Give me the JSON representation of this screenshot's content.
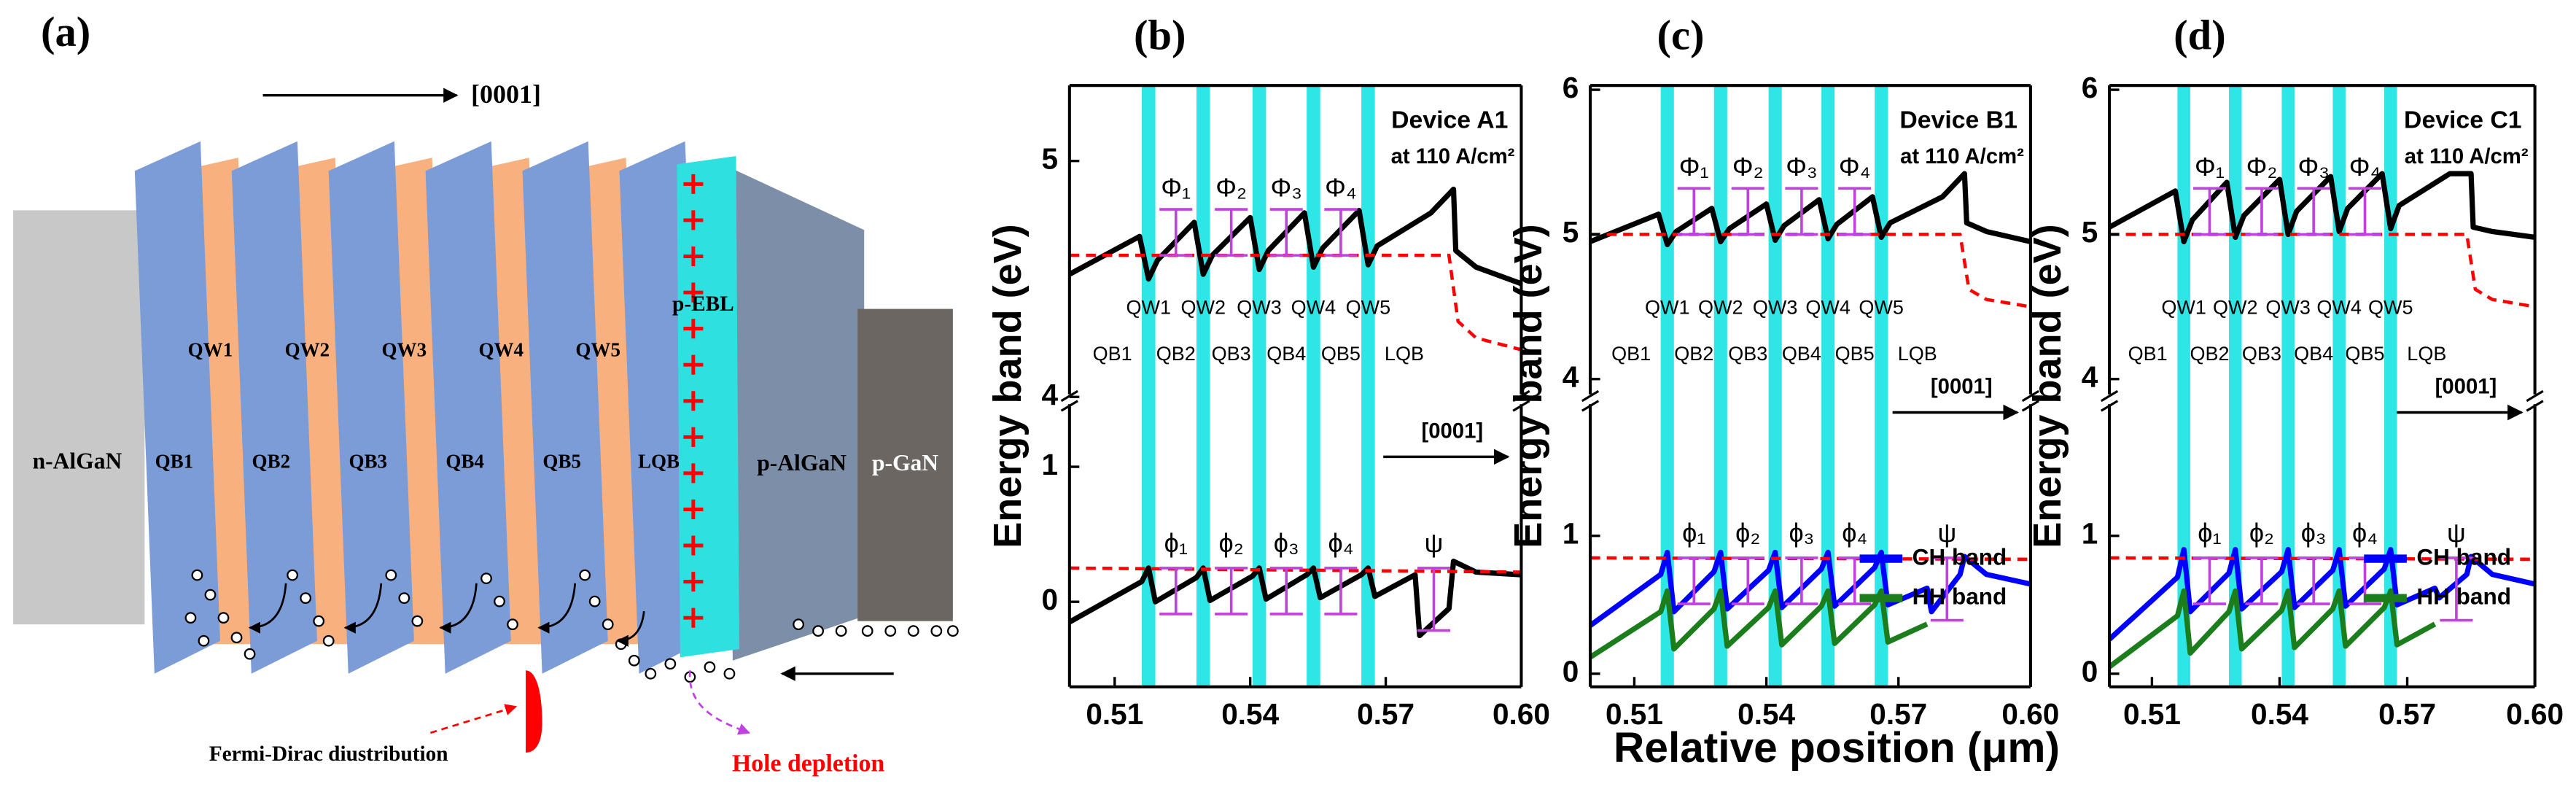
{
  "diagram": {
    "label": "(a)",
    "direction": "[0001]",
    "n_layer": "n-AlGaN",
    "qb_labels": [
      "QB1",
      "QB2",
      "QB3",
      "QB4",
      "QB5",
      "LQB"
    ],
    "qw_labels": [
      "QW1",
      "QW2",
      "QW3",
      "QW4",
      "QW5"
    ],
    "ebl": "p-EBL",
    "p_algan": "p-AlGaN",
    "p_gan": "p-GaN",
    "fermi_note": "Fermi-Dirac diustribution",
    "hole_note": "Hole depletion"
  },
  "chart_data": [
    {
      "type": "line",
      "panel_label": "(b)",
      "title": "Device A1",
      "subtitle": "at 110 A/cm²",
      "ylabel": "Energy band (eV)",
      "xlim": [
        0.5,
        0.6
      ],
      "xticks": [
        0.51,
        0.54,
        0.57,
        {
          "value": 0.6,
          "label": "0.60"
        }
      ],
      "qw_centers": [
        0.5175,
        0.5296,
        0.542,
        0.554,
        0.5661
      ],
      "qw_width": 0.003,
      "qw_color": "#2ee6e6",
      "qw_labels": [
        "QW1",
        "QW2",
        "QW3",
        "QW4",
        "QW5"
      ],
      "qb_labels": [
        "QB1",
        "QB2",
        "QB3",
        "QB4",
        "QB5",
        "LQB"
      ],
      "barrier_labels_upper": [
        "Φ₁",
        "Φ₂",
        "Φ₃",
        "Φ₄"
      ],
      "barrier_labels_lower": [
        "ϕ₁",
        "ϕ₂",
        "ϕ₃",
        "ϕ₄",
        "ψ"
      ],
      "direction_label": "[0001]",
      "segments": [
        {
          "ylim": [
            3.99,
            5.32
          ],
          "yticks": [
            4,
            5
          ],
          "series": [
            {
              "color": "#000000",
              "x": [
                0.5,
                0.5155,
                0.5175,
                0.5195,
                0.5276,
                0.5296,
                0.5316,
                0.54,
                0.542,
                0.544,
                0.552,
                0.554,
                0.556,
                0.5641,
                0.5661,
                0.5681,
                0.58,
                0.585,
                0.5855,
                0.59,
                0.6
              ],
              "values": [
                4.52,
                4.68,
                4.5,
                4.58,
                4.74,
                4.52,
                4.6,
                4.76,
                4.54,
                4.62,
                4.78,
                4.55,
                4.63,
                4.79,
                4.56,
                4.64,
                4.78,
                4.88,
                4.62,
                4.55,
                4.48
              ]
            },
            {
              "color": "#ff0000",
              "line_style": "dashed",
              "x": [
                0.5,
                0.584,
                0.586,
                0.59,
                0.6
              ],
              "values": [
                4.6,
                4.6,
                4.32,
                4.25,
                4.2
              ]
            }
          ]
        },
        {
          "ylim": [
            -0.63,
            1.5
          ],
          "yticks": [
            0,
            1
          ],
          "series": [
            {
              "color": "#000000",
              "x": [
                0.5,
                0.516,
                0.5175,
                0.519,
                0.5281,
                0.5296,
                0.5311,
                0.5405,
                0.542,
                0.5435,
                0.5525,
                0.554,
                0.5555,
                0.5646,
                0.5661,
                0.5676,
                0.5765,
                0.5775,
                0.584,
                0.585,
                0.59,
                0.6
              ],
              "values": [
                -0.15,
                0.15,
                0.25,
                0.0,
                0.18,
                0.25,
                0.01,
                0.19,
                0.25,
                0.02,
                0.2,
                0.25,
                0.03,
                0.2,
                0.25,
                0.04,
                0.2,
                -0.25,
                -0.05,
                0.3,
                0.22,
                0.2
              ]
            },
            {
              "color": "#ff0000",
              "line_style": "dashed",
              "x": [
                0.5,
                0.6
              ],
              "values": [
                0.25,
                0.22
              ]
            }
          ]
        }
      ]
    },
    {
      "type": "line",
      "panel_label": "(c)",
      "title": "Device B1",
      "subtitle": "at 110 A/cm²",
      "ylabel": "Energy band (eV)",
      "xlabel": "Relative position (μm)",
      "xlim": [
        0.5,
        0.6
      ],
      "xticks": [
        0.51,
        0.54,
        0.57,
        {
          "value": 0.6,
          "label": "0.60"
        }
      ],
      "qw_centers": [
        0.5175,
        0.5296,
        0.542,
        0.554,
        0.5661
      ],
      "qw_width": 0.003,
      "qw_color": "#2ee6e6",
      "qw_labels": [
        "QW1",
        "QW2",
        "QW3",
        "QW4",
        "QW5"
      ],
      "qb_labels": [
        "QB1",
        "QB2",
        "QB3",
        "QB4",
        "QB5",
        "LQB"
      ],
      "barrier_labels_upper": [
        "Φ₁",
        "Φ₂",
        "Φ₃",
        "Φ₄"
      ],
      "barrier_labels_lower": [
        "ϕ₁",
        "ϕ₂",
        "ϕ₃",
        "ϕ₄",
        "ψ"
      ],
      "direction_label": "[0001]",
      "legend": "right",
      "segments": [
        {
          "ylim": [
            3.86,
            6.03
          ],
          "yticks": [
            4,
            5,
            6
          ],
          "series": [
            {
              "color": "#000000",
              "x": [
                0.5,
                0.5155,
                0.5175,
                0.5195,
                0.5276,
                0.5296,
                0.5316,
                0.54,
                0.542,
                0.544,
                0.552,
                0.554,
                0.556,
                0.5641,
                0.5661,
                0.5681,
                0.58,
                0.585,
                0.5855,
                0.59,
                0.6
              ],
              "values": [
                4.95,
                5.14,
                4.93,
                5.02,
                5.18,
                4.95,
                5.04,
                5.21,
                4.96,
                5.06,
                5.24,
                4.97,
                5.07,
                5.26,
                4.98,
                5.08,
                5.26,
                5.42,
                5.08,
                5.02,
                4.95
              ]
            },
            {
              "color": "#ff0000",
              "line_style": "dashed",
              "x": [
                0.5,
                0.584,
                0.586,
                0.59,
                0.6
              ],
              "values": [
                5.0,
                5.0,
                4.62,
                4.55,
                4.5
              ]
            }
          ]
        },
        {
          "ylim": [
            -0.095,
            1.99
          ],
          "yticks": [
            0,
            1
          ],
          "series": [
            {
              "name": "CH band",
              "color": "#0000ff",
              "x": [
                0.5,
                0.516,
                0.5175,
                0.519,
                0.5281,
                0.5296,
                0.5311,
                0.5405,
                0.542,
                0.5435,
                0.5525,
                0.554,
                0.5555,
                0.5646,
                0.5661,
                0.5676,
                0.5765,
                0.5775,
                0.584,
                0.585,
                0.59,
                0.6
              ],
              "values": [
                0.35,
                0.72,
                0.88,
                0.45,
                0.74,
                0.88,
                0.47,
                0.75,
                0.88,
                0.48,
                0.76,
                0.88,
                0.49,
                0.77,
                0.88,
                0.5,
                0.62,
                0.45,
                0.72,
                0.85,
                0.72,
                0.65
              ]
            },
            {
              "name": "HH band",
              "color": "#1b7d1b",
              "x": [
                0.5,
                0.516,
                0.5175,
                0.519,
                0.5281,
                0.5296,
                0.5311,
                0.5405,
                0.542,
                0.5435,
                0.5525,
                0.554,
                0.5555,
                0.5646,
                0.5661,
                0.5676,
                0.5765,
                0.5775,
                0.584,
                0.585,
                0.59,
                0.6
              ],
              "values": [
                0.12,
                0.45,
                0.6,
                0.18,
                0.47,
                0.6,
                0.2,
                0.48,
                0.6,
                0.21,
                0.49,
                0.6,
                0.22,
                0.5,
                0.6,
                0.23,
                0.36,
                null,
                null,
                null,
                null,
                null
              ]
            },
            {
              "color": "#ff0000",
              "line_style": "dashed",
              "x": [
                0.5,
                0.6
              ],
              "values": [
                0.84,
                0.83
              ]
            }
          ]
        }
      ]
    },
    {
      "type": "line",
      "panel_label": "(d)",
      "title": "Device C1",
      "subtitle": "at 110 A/cm²",
      "ylabel": "Energy band (eV)",
      "xlim": [
        0.5,
        0.6
      ],
      "xticks": [
        0.51,
        0.54,
        0.57,
        {
          "value": 0.6,
          "label": "0.60"
        }
      ],
      "qw_centers": [
        0.5175,
        0.5296,
        0.542,
        0.554,
        0.5661
      ],
      "qw_width": 0.003,
      "qw_color": "#2ee6e6",
      "qw_labels": [
        "QW1",
        "QW2",
        "QW3",
        "QW4",
        "QW5"
      ],
      "qb_labels": [
        "QB1",
        "QB2",
        "QB3",
        "QB4",
        "QB5",
        "LQB"
      ],
      "barrier_labels_upper": [
        "Φ₁",
        "Φ₂",
        "Φ₃",
        "Φ₄"
      ],
      "barrier_labels_lower": [
        "ϕ₁",
        "ϕ₂",
        "ϕ₃",
        "ϕ₄",
        "ψ"
      ],
      "direction_label": "[0001]",
      "legend": "right",
      "segments": [
        {
          "ylim": [
            3.86,
            6.03
          ],
          "yticks": [
            4,
            5,
            6
          ],
          "series": [
            {
              "color": "#000000",
              "x": [
                0.5,
                0.5155,
                0.5175,
                0.5195,
                0.5276,
                0.5296,
                0.5316,
                0.54,
                0.542,
                0.544,
                0.552,
                0.554,
                0.556,
                0.5641,
                0.5661,
                0.5681,
                0.58,
                0.585,
                0.5855,
                0.59,
                0.6
              ],
              "values": [
                5.05,
                5.3,
                4.95,
                5.1,
                5.36,
                4.98,
                5.13,
                5.38,
                5.0,
                5.16,
                5.4,
                5.02,
                5.18,
                5.42,
                5.04,
                5.2,
                5.42,
                5.42,
                5.05,
                5.02,
                4.98
              ]
            },
            {
              "color": "#ff0000",
              "line_style": "dashed",
              "x": [
                0.5,
                0.584,
                0.586,
                0.59,
                0.6
              ],
              "values": [
                5.0,
                5.0,
                4.62,
                4.55,
                4.5
              ]
            }
          ]
        },
        {
          "ylim": [
            -0.095,
            1.99
          ],
          "yticks": [
            0,
            1
          ],
          "series": [
            {
              "name": "CH band",
              "color": "#0000ff",
              "x": [
                0.5,
                0.516,
                0.5175,
                0.519,
                0.5281,
                0.5296,
                0.5311,
                0.5405,
                0.542,
                0.5435,
                0.5525,
                0.554,
                0.5555,
                0.5646,
                0.5661,
                0.5676,
                0.5765,
                0.5775,
                0.584,
                0.585,
                0.59,
                0.6
              ],
              "values": [
                0.25,
                0.7,
                0.9,
                0.45,
                0.73,
                0.9,
                0.47,
                0.74,
                0.9,
                0.48,
                0.75,
                0.9,
                0.49,
                0.76,
                0.9,
                0.5,
                0.62,
                0.55,
                0.72,
                0.85,
                0.72,
                0.65
              ]
            },
            {
              "name": "HH band",
              "color": "#1b7d1b",
              "x": [
                0.5,
                0.516,
                0.5175,
                0.519,
                0.5281,
                0.5296,
                0.5311,
                0.5405,
                0.542,
                0.5435,
                0.5525,
                0.554,
                0.5555,
                0.5646,
                0.5661,
                0.5676,
                0.5765,
                0.5775,
                0.584,
                0.585,
                0.59,
                0.6
              ],
              "values": [
                0.05,
                0.42,
                0.6,
                0.15,
                0.45,
                0.6,
                0.18,
                0.46,
                0.6,
                0.19,
                0.47,
                0.6,
                0.2,
                0.48,
                0.6,
                0.21,
                0.36,
                null,
                null,
                null,
                null,
                null
              ]
            },
            {
              "color": "#ff0000",
              "line_style": "dashed",
              "x": [
                0.5,
                0.6
              ],
              "values": [
                0.84,
                0.83
              ]
            }
          ]
        }
      ]
    }
  ]
}
